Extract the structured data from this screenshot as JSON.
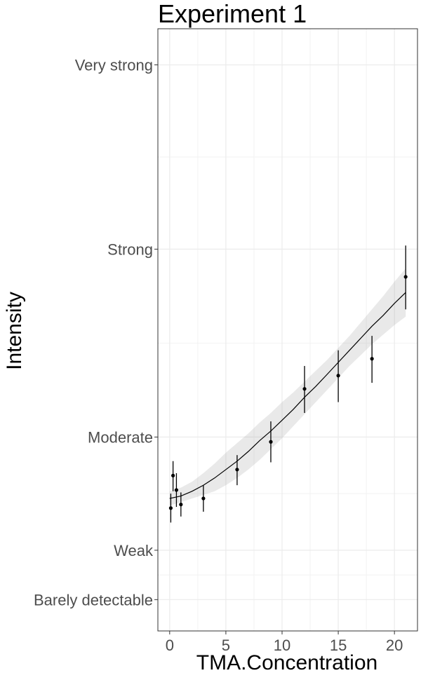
{
  "chart_data": {
    "type": "scatter",
    "title": "Experiment 1",
    "xlabel": "TMA.Concentration",
    "ylabel": "Intensity",
    "xlim": [
      -1.05,
      22.05
    ],
    "ylim": [
      -1.0,
      49.0
    ],
    "x_ticks": [
      0,
      5,
      10,
      15,
      20
    ],
    "x_tick_labels": [
      "0",
      "5",
      "10",
      "15",
      "20"
    ],
    "y_ticks": [
      1.6,
      5.7,
      15.1,
      30.7,
      46.0
    ],
    "y_tick_labels": [
      "Barely detectable",
      "Weak",
      "Moderate",
      "Strong",
      "Very strong"
    ],
    "grid": true,
    "points": [
      {
        "x": 0.1,
        "y": 9.2,
        "err_low": 8.0,
        "err_high": 10.4
      },
      {
        "x": 0.3,
        "y": 11.9,
        "err_low": 10.6,
        "err_high": 13.1
      },
      {
        "x": 0.6,
        "y": 10.7,
        "err_low": 9.3,
        "err_high": 12.1
      },
      {
        "x": 1.0,
        "y": 9.5,
        "err_low": 8.5,
        "err_high": 10.5
      },
      {
        "x": 3.0,
        "y": 10.0,
        "err_low": 8.9,
        "err_high": 11.1
      },
      {
        "x": 6.0,
        "y": 12.4,
        "err_low": 11.1,
        "err_high": 13.6
      },
      {
        "x": 9.0,
        "y": 14.7,
        "err_low": 13.0,
        "err_high": 16.4
      },
      {
        "x": 12.0,
        "y": 19.1,
        "err_low": 17.1,
        "err_high": 21.0
      },
      {
        "x": 15.0,
        "y": 20.2,
        "err_low": 18.0,
        "err_high": 22.3
      },
      {
        "x": 18.0,
        "y": 21.6,
        "err_low": 19.6,
        "err_high": 23.5
      },
      {
        "x": 21.0,
        "y": 28.4,
        "err_low": 25.7,
        "err_high": 31.0
      }
    ],
    "fit": {
      "type": "smooth",
      "x": [
        0,
        1,
        2,
        3,
        4,
        5,
        6,
        7,
        8,
        9,
        10,
        11,
        12,
        13,
        14,
        15,
        16,
        17,
        18,
        19,
        20,
        21
      ],
      "y": [
        10.0,
        10.2,
        10.6,
        11.1,
        11.7,
        12.4,
        13.1,
        13.9,
        14.8,
        15.6,
        16.5,
        17.4,
        18.4,
        19.3,
        20.3,
        21.3,
        22.3,
        23.3,
        24.3,
        25.2,
        26.2,
        27.1
      ],
      "ci_low": [
        9.4,
        9.7,
        10.0,
        10.3,
        10.6,
        11.1,
        11.7,
        12.4,
        13.2,
        14.1,
        15.0,
        16.0,
        17.0,
        18.0,
        19.0,
        20.0,
        21.0,
        21.9,
        22.8,
        23.6,
        24.4,
        25.1
      ],
      "ci_high": [
        10.6,
        10.9,
        11.4,
        12.1,
        12.9,
        13.8,
        14.6,
        15.4,
        16.3,
        17.1,
        18.0,
        18.8,
        19.7,
        20.6,
        21.5,
        22.5,
        23.5,
        24.6,
        25.7,
        26.8,
        28.0,
        29.1
      ]
    }
  }
}
